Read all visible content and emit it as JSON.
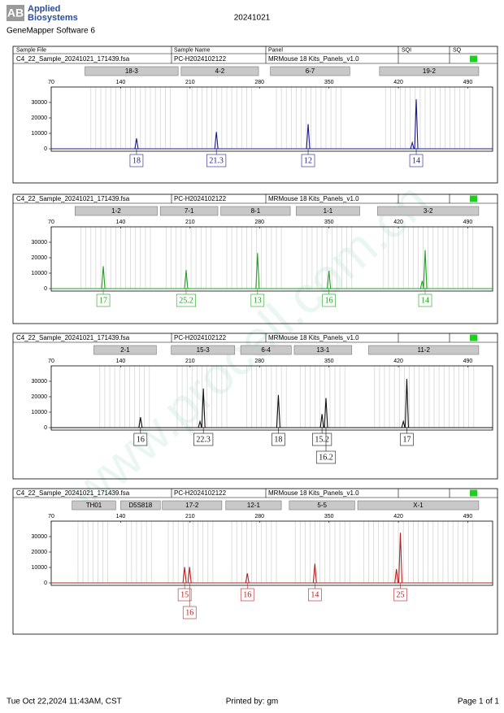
{
  "header": {
    "logo": "AB",
    "brand_line1": "Applied",
    "brand_line2": "Biosystems",
    "software": "GeneMapper Software 6",
    "title": "20241021"
  },
  "columns": [
    "Sample File",
    "Sample Name",
    "Panel",
    "SQI",
    "SQ"
  ],
  "axis": {
    "xlim": [
      70,
      515
    ],
    "xticks": [
      70,
      140,
      210,
      280,
      350,
      420,
      490
    ],
    "ylim": [
      0,
      40000
    ],
    "yticks": [
      0,
      10000,
      20000,
      30000
    ]
  },
  "panels": [
    {
      "sample_file": "C4_22_Sample_20241021_171439.fsa",
      "sample_name": "PC-H2024102122",
      "panel": "MRMouse 18 Kits_Panels_v1.0",
      "sq_color": "#22cc22",
      "dye_color": "#1a1a8c",
      "markers": [
        {
          "name": "18-3",
          "range": [
            104,
            198
          ]
        },
        {
          "name": "4-2",
          "range": [
            201,
            279
          ]
        },
        {
          "name": "6-7",
          "range": [
            291,
            371
          ]
        },
        {
          "name": "19-2",
          "range": [
            401,
            501
          ]
        }
      ],
      "peaks": [
        {
          "x": 156,
          "height": 6700,
          "allele": "18"
        },
        {
          "x": 236.5,
          "height": 10900,
          "allele": "21.3"
        },
        {
          "x": 329,
          "height": 16000,
          "allele": "12"
        },
        {
          "x": 434,
          "height": 4000
        },
        {
          "x": 438,
          "height": 32000,
          "allele": "14"
        }
      ]
    },
    {
      "sample_file": "C4_22_Sample_20241021_171439.fsa",
      "sample_name": "PC-H2024102122",
      "panel": "MRMouse 18 Kits_Panels_v1.0",
      "sq_color": "#22cc22",
      "dye_color": "#22a022",
      "markers": [
        {
          "name": "1-2",
          "range": [
            94,
            177
          ]
        },
        {
          "name": "7-1",
          "range": [
            180,
            238
          ]
        },
        {
          "name": "8-1",
          "range": [
            241,
            311
          ]
        },
        {
          "name": "1-1",
          "range": [
            317,
            381
          ]
        },
        {
          "name": "3-2",
          "range": [
            399,
            501
          ]
        }
      ],
      "peaks": [
        {
          "x": 122.5,
          "height": 14500,
          "allele": "17"
        },
        {
          "x": 206,
          "height": 12000,
          "allele": "25.2"
        },
        {
          "x": 278,
          "height": 23000,
          "allele": "13"
        },
        {
          "x": 350,
          "height": 11500,
          "allele": "16"
        },
        {
          "x": 444,
          "height": 5000
        },
        {
          "x": 447,
          "height": 25000,
          "allele": "14"
        }
      ]
    },
    {
      "sample_file": "C4_22_Sample_20241021_171439.fsa",
      "sample_name": "PC-H2024102122",
      "panel": "MRMouse 18 Kits_Panels_v1.0",
      "sq_color": "#22cc22",
      "dye_color": "#111111",
      "markers": [
        {
          "name": "2-1",
          "range": [
            113,
            176
          ]
        },
        {
          "name": "15-3",
          "range": [
            191,
            255
          ]
        },
        {
          "name": "6-4",
          "range": [
            261,
            312
          ]
        },
        {
          "name": "13-1",
          "range": [
            315,
            373
          ]
        },
        {
          "name": "11-2",
          "range": [
            390,
            501
          ]
        }
      ],
      "peaks": [
        {
          "x": 160,
          "height": 6700,
          "allele": "16"
        },
        {
          "x": 220,
          "height": 4000
        },
        {
          "x": 223.4,
          "height": 25300,
          "allele": "22.3"
        },
        {
          "x": 299,
          "height": 21200,
          "allele": "18"
        },
        {
          "x": 343,
          "height": 8800,
          "allele": "15.2"
        },
        {
          "x": 347,
          "height": 19100,
          "allele": "16.2"
        },
        {
          "x": 425,
          "height": 4000
        },
        {
          "x": 428.5,
          "height": 31500,
          "allele": "17"
        }
      ]
    },
    {
      "sample_file": "C4_22_Sample_20241021_171439.fsa",
      "sample_name": "PC-H2024102122",
      "panel": "MRMouse 18 Kits_Panels_v1.0",
      "sq_color": "#22cc22",
      "dye_color": "#b22222",
      "markers": [
        {
          "name": "TH01",
          "range": [
            91,
            135
          ]
        },
        {
          "name": "D5S818",
          "range": [
            140,
            180
          ]
        },
        {
          "name": "17-2",
          "range": [
            182,
            242
          ]
        },
        {
          "name": "12-1",
          "range": [
            246,
            302
          ]
        },
        {
          "name": "5-5",
          "range": [
            310,
            376
          ]
        },
        {
          "name": "X-1",
          "range": [
            379,
            501
          ]
        }
      ],
      "peaks": [
        {
          "x": 204.5,
          "height": 10300,
          "allele": "15"
        },
        {
          "x": 209.5,
          "height": 10300,
          "allele": "16"
        },
        {
          "x": 267.7,
          "height": 6200,
          "allele": "16"
        },
        {
          "x": 335.8,
          "height": 12400,
          "allele": "14"
        },
        {
          "x": 418,
          "height": 9000
        },
        {
          "x": 422,
          "height": 32500,
          "allele": "25"
        }
      ]
    }
  ],
  "footer": {
    "left": "Tue Oct 22,2024 11:43AM, CST",
    "center": "Printed by: gm",
    "right": "Page 1 of 1"
  },
  "watermark": "www.procell.com.cn"
}
